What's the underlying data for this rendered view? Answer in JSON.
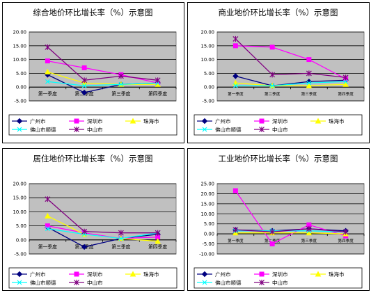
{
  "chart_data": [
    {
      "type": "line",
      "title": "综合地价环比增长率（%）示意图",
      "categories": [
        "第一季度",
        "第二季度",
        "第三季度",
        "第四季度"
      ],
      "ylim": [
        -5,
        20
      ],
      "yticks": [
        "20.00",
        "15.00",
        "10.00",
        "5.00",
        "0.00",
        "-5.00"
      ],
      "grid": true,
      "legend_position": "bottom",
      "series": [
        {
          "name": "广州市",
          "values": [
            4.5,
            -2.0,
            1.0,
            1.5
          ],
          "color": "#000080",
          "marker": "diamond"
        },
        {
          "name": "深圳市",
          "values": [
            9.5,
            7.0,
            4.5,
            1.5
          ],
          "color": "#FF00FF",
          "marker": "square"
        },
        {
          "name": "珠海市",
          "values": [
            5.5,
            1.5,
            1.0,
            1.0
          ],
          "color": "#FFFF00",
          "marker": "triangle"
        },
        {
          "name": "佛山市顺德",
          "values": [
            2.0,
            0.5,
            1.0,
            1.5
          ],
          "color": "#00FFFF",
          "marker": "x"
        },
        {
          "name": "中山市",
          "values": [
            14.5,
            2.5,
            4.0,
            2.5
          ],
          "color": "#800080",
          "marker": "star"
        }
      ]
    },
    {
      "type": "line",
      "title": "商业地价环比增长率（%）示意图",
      "categories": [
        "第一季度",
        "第二季度",
        "第三季度",
        "第四季度"
      ],
      "ylim": [
        -5,
        20
      ],
      "yticks": [
        "20.00",
        "15.00",
        "10.00",
        "5.00",
        "0.00",
        "-5.00"
      ],
      "grid": true,
      "legend_position": "bottom",
      "series": [
        {
          "name": "广州市",
          "values": [
            4.0,
            0.5,
            2.0,
            2.5
          ],
          "color": "#000080",
          "marker": "diamond"
        },
        {
          "name": "深圳市",
          "values": [
            15.0,
            14.5,
            10.0,
            3.0
          ],
          "color": "#FF00FF",
          "marker": "square"
        },
        {
          "name": "珠海市",
          "values": [
            1.5,
            0.5,
            0.5,
            1.0
          ],
          "color": "#FFFF00",
          "marker": "triangle"
        },
        {
          "name": "佛山市顺德",
          "values": [
            0.5,
            0.5,
            1.5,
            2.0
          ],
          "color": "#00FFFF",
          "marker": "x"
        },
        {
          "name": "中山市",
          "values": [
            17.5,
            4.5,
            5.0,
            3.5
          ],
          "color": "#800080",
          "marker": "star"
        }
      ]
    },
    {
      "type": "line",
      "title": "居住地价环比增长率（%）示意图",
      "categories": [
        "第一季度",
        "第二季度",
        "第三季度",
        "第四季度"
      ],
      "ylim": [
        -5,
        20
      ],
      "yticks": [
        "20.00",
        "15.00",
        "10.00",
        "5.00",
        "0.00",
        "-5.00"
      ],
      "grid": true,
      "legend_position": "bottom",
      "series": [
        {
          "name": "广州市",
          "values": [
            4.5,
            -2.5,
            0.5,
            2.0
          ],
          "color": "#000080",
          "marker": "diamond"
        },
        {
          "name": "深圳市",
          "values": [
            5.0,
            2.5,
            0.5,
            1.0
          ],
          "color": "#FF00FF",
          "marker": "square"
        },
        {
          "name": "珠海市",
          "values": [
            8.5,
            2.0,
            0.5,
            -0.5
          ],
          "color": "#FFFF00",
          "marker": "triangle"
        },
        {
          "name": "佛山市顺德",
          "values": [
            4.0,
            2.0,
            0.5,
            2.5
          ],
          "color": "#00FFFF",
          "marker": "x"
        },
        {
          "name": "中山市",
          "values": [
            14.5,
            3.0,
            2.5,
            2.5
          ],
          "color": "#800080",
          "marker": "star"
        }
      ]
    },
    {
      "type": "line",
      "title": "工业地价环比增长率（%）示意图",
      "categories": [
        "第一季度",
        "第二季度",
        "第三季度",
        "第四季度"
      ],
      "ylim": [
        -10,
        25
      ],
      "yticks": [
        "25.00",
        "20.00",
        "15.00",
        "10.00",
        "5.00",
        "0.00",
        "-5.00",
        "-10.00"
      ],
      "grid": true,
      "legend_position": "bottom",
      "series": [
        {
          "name": "广州市",
          "values": [
            2.0,
            1.5,
            2.5,
            1.5
          ],
          "color": "#000080",
          "marker": "diamond"
        },
        {
          "name": "深圳市",
          "values": [
            21.5,
            -5.0,
            4.5,
            -1.0
          ],
          "color": "#FF00FF",
          "marker": "square"
        },
        {
          "name": "珠海市",
          "values": [
            0.5,
            0.5,
            0.5,
            0.0
          ],
          "color": "#FFFF00",
          "marker": "triangle"
        },
        {
          "name": "佛山市顺德",
          "values": [
            1.5,
            1.5,
            1.5,
            1.0
          ],
          "color": "#00FFFF",
          "marker": "x"
        },
        {
          "name": "中山市",
          "values": [
            2.0,
            1.0,
            2.5,
            1.0
          ],
          "color": "#800080",
          "marker": "star"
        }
      ]
    }
  ]
}
